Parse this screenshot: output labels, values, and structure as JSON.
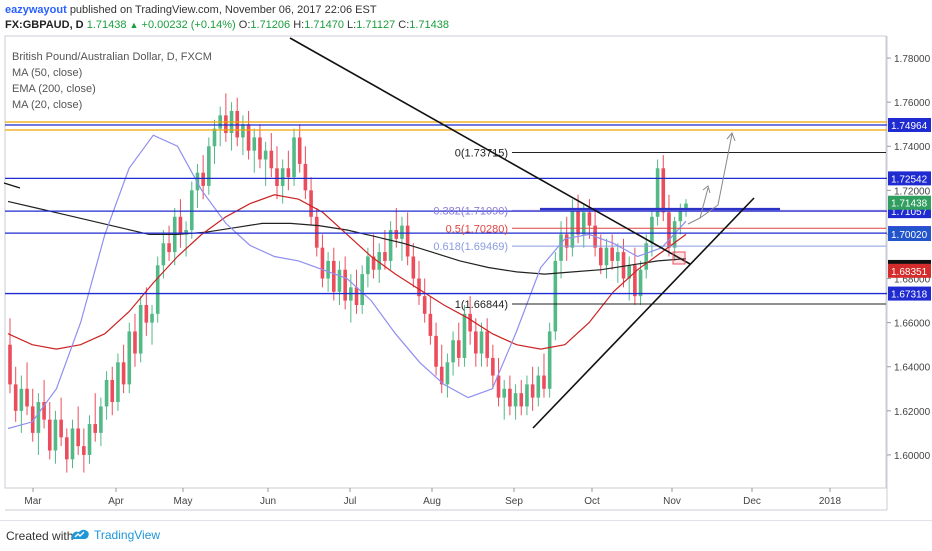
{
  "header": {
    "author": "eazywayout",
    "published_text": "published on TradingView.com, November 06, 2017 22:06 EST",
    "symbol": "FX:GBPAUD, D",
    "last": "1.71438",
    "change": "+0.00232 (+0.14%)",
    "open_label": "O:",
    "open": "1.71206",
    "high_label": "H:",
    "high": "1.71470",
    "low_label": "L:",
    "low": "1.71127",
    "close_label": "C:",
    "close": "1.71438"
  },
  "legend": {
    "title": "British Pound/Australian Dollar, D, FXCM",
    "ma50": "MA (50, close)",
    "ema200": "EMA (200, close)",
    "ma20": "MA (20, close)"
  },
  "footer": {
    "created_with": "Created with",
    "brand": "TradingView"
  },
  "colors": {
    "up": "#53b987",
    "down": "#eb4d5c",
    "blue_line": "#1f2bd1",
    "orange_line": "#f0a400",
    "ma50": "#cc2222",
    "ma20": "#8f8ff0",
    "ema200": "#222222",
    "fib_382": "#8a7bd8",
    "fib_05": "#e04444",
    "fib_618": "#8a9be0"
  },
  "chart_data": {
    "type": "candlestick",
    "x_ticks": [
      "Mar",
      "Apr",
      "May",
      "Jun",
      "Jul",
      "Aug",
      "Sep",
      "Oct",
      "Nov",
      "Dec",
      "2018"
    ],
    "y_ticks": [
      "1.78000",
      "1.76000",
      "1.74000",
      "1.72000",
      "1.70000",
      "1.68000",
      "1.66000",
      "1.64000",
      "1.62000",
      "1.60000"
    ],
    "ylim": [
      1.585,
      1.79
    ],
    "candles": [
      [
        1.65,
        1.662,
        1.628,
        1.632
      ],
      [
        1.632,
        1.64,
        1.615,
        1.62
      ],
      [
        1.62,
        1.636,
        1.61,
        1.63
      ],
      [
        1.63,
        1.642,
        1.618,
        1.622
      ],
      [
        1.622,
        1.63,
        1.606,
        1.61
      ],
      [
        1.61,
        1.628,
        1.6,
        1.624
      ],
      [
        1.624,
        1.634,
        1.612,
        1.616
      ],
      [
        1.616,
        1.624,
        1.598,
        1.602
      ],
      [
        1.602,
        1.62,
        1.596,
        1.616
      ],
      [
        1.616,
        1.626,
        1.604,
        1.608
      ],
      [
        1.608,
        1.612,
        1.592,
        1.598
      ],
      [
        1.598,
        1.616,
        1.594,
        1.612
      ],
      [
        1.612,
        1.622,
        1.6,
        1.604
      ],
      [
        1.604,
        1.612,
        1.592,
        1.6
      ],
      [
        1.6,
        1.618,
        1.596,
        1.614
      ],
      [
        1.614,
        1.628,
        1.606,
        1.61
      ],
      [
        1.61,
        1.626,
        1.604,
        1.622
      ],
      [
        1.622,
        1.638,
        1.616,
        1.634
      ],
      [
        1.634,
        1.64,
        1.618,
        1.624
      ],
      [
        1.624,
        1.646,
        1.62,
        1.642
      ],
      [
        1.642,
        1.65,
        1.628,
        1.632
      ],
      [
        1.632,
        1.66,
        1.628,
        1.656
      ],
      [
        1.656,
        1.664,
        1.64,
        1.646
      ],
      [
        1.646,
        1.672,
        1.642,
        1.668
      ],
      [
        1.668,
        1.676,
        1.654,
        1.66
      ],
      [
        1.66,
        1.668,
        1.65,
        1.664
      ],
      [
        1.664,
        1.69,
        1.66,
        1.686
      ],
      [
        1.686,
        1.702,
        1.68,
        1.696
      ],
      [
        1.696,
        1.704,
        1.688,
        1.692
      ],
      [
        1.692,
        1.712,
        1.686,
        1.708
      ],
      [
        1.708,
        1.716,
        1.694,
        1.7
      ],
      [
        1.7,
        1.706,
        1.69,
        1.702
      ],
      [
        1.702,
        1.724,
        1.698,
        1.72
      ],
      [
        1.72,
        1.732,
        1.712,
        1.728
      ],
      [
        1.728,
        1.736,
        1.716,
        1.722
      ],
      [
        1.722,
        1.744,
        1.718,
        1.74
      ],
      [
        1.74,
        1.752,
        1.732,
        1.748
      ],
      [
        1.748,
        1.758,
        1.74,
        1.754
      ],
      [
        1.754,
        1.764,
        1.742,
        1.746
      ],
      [
        1.746,
        1.76,
        1.738,
        1.756
      ],
      [
        1.756,
        1.762,
        1.74,
        1.744
      ],
      [
        1.744,
        1.754,
        1.736,
        1.75
      ],
      [
        1.75,
        1.756,
        1.734,
        1.738
      ],
      [
        1.738,
        1.748,
        1.728,
        1.744
      ],
      [
        1.744,
        1.75,
        1.73,
        1.734
      ],
      [
        1.734,
        1.742,
        1.722,
        1.738
      ],
      [
        1.738,
        1.746,
        1.726,
        1.73
      ],
      [
        1.73,
        1.74,
        1.716,
        1.722
      ],
      [
        1.722,
        1.734,
        1.714,
        1.73
      ],
      [
        1.73,
        1.738,
        1.72,
        1.726
      ],
      [
        1.726,
        1.748,
        1.722,
        1.744
      ],
      [
        1.744,
        1.75,
        1.728,
        1.732
      ],
      [
        1.732,
        1.74,
        1.716,
        1.72
      ],
      [
        1.72,
        1.726,
        1.704,
        1.708
      ],
      [
        1.708,
        1.712,
        1.69,
        1.694
      ],
      [
        1.694,
        1.7,
        1.676,
        1.68
      ],
      [
        1.68,
        1.692,
        1.674,
        1.688
      ],
      [
        1.688,
        1.694,
        1.67,
        1.674
      ],
      [
        1.674,
        1.688,
        1.668,
        1.684
      ],
      [
        1.684,
        1.69,
        1.666,
        1.67
      ],
      [
        1.67,
        1.682,
        1.66,
        1.676
      ],
      [
        1.676,
        1.684,
        1.664,
        1.668
      ],
      [
        1.668,
        1.686,
        1.664,
        1.682
      ],
      [
        1.682,
        1.694,
        1.676,
        1.69
      ],
      [
        1.69,
        1.7,
        1.68,
        1.684
      ],
      [
        1.684,
        1.696,
        1.678,
        1.692
      ],
      [
        1.692,
        1.702,
        1.684,
        1.688
      ],
      [
        1.688,
        1.706,
        1.684,
        1.702
      ],
      [
        1.702,
        1.712,
        1.694,
        1.698
      ],
      [
        1.698,
        1.708,
        1.688,
        1.704
      ],
      [
        1.704,
        1.71,
        1.686,
        1.69
      ],
      [
        1.69,
        1.696,
        1.676,
        1.68
      ],
      [
        1.68,
        1.688,
        1.668,
        1.672
      ],
      [
        1.672,
        1.68,
        1.66,
        1.664
      ],
      [
        1.664,
        1.672,
        1.65,
        1.654
      ],
      [
        1.654,
        1.66,
        1.636,
        1.64
      ],
      [
        1.64,
        1.65,
        1.628,
        1.632
      ],
      [
        1.632,
        1.646,
        1.626,
        1.642
      ],
      [
        1.642,
        1.656,
        1.636,
        1.652
      ],
      [
        1.652,
        1.66,
        1.64,
        1.644
      ],
      [
        1.644,
        1.668,
        1.64,
        1.664
      ],
      [
        1.664,
        1.672,
        1.65,
        1.656
      ],
      [
        1.656,
        1.662,
        1.64,
        1.646
      ],
      [
        1.646,
        1.66,
        1.64,
        1.656
      ],
      [
        1.656,
        1.662,
        1.64,
        1.644
      ],
      [
        1.644,
        1.65,
        1.63,
        1.636
      ],
      [
        1.636,
        1.644,
        1.622,
        1.626
      ],
      [
        1.626,
        1.634,
        1.616,
        1.63
      ],
      [
        1.63,
        1.636,
        1.618,
        1.622
      ],
      [
        1.622,
        1.632,
        1.616,
        1.628
      ],
      [
        1.628,
        1.634,
        1.618,
        1.622
      ],
      [
        1.622,
        1.636,
        1.618,
        1.632
      ],
      [
        1.632,
        1.64,
        1.62,
        1.626
      ],
      [
        1.626,
        1.64,
        1.622,
        1.636
      ],
      [
        1.636,
        1.646,
        1.626,
        1.63
      ],
      [
        1.63,
        1.66,
        1.626,
        1.656
      ],
      [
        1.656,
        1.692,
        1.652,
        1.688
      ],
      [
        1.688,
        1.706,
        1.68,
        1.7
      ],
      [
        1.7,
        1.708,
        1.688,
        1.694
      ],
      [
        1.694,
        1.716,
        1.69,
        1.712
      ],
      [
        1.712,
        1.718,
        1.696,
        1.7
      ],
      [
        1.7,
        1.714,
        1.694,
        1.71
      ],
      [
        1.71,
        1.716,
        1.698,
        1.704
      ],
      [
        1.704,
        1.712,
        1.69,
        1.694
      ],
      [
        1.694,
        1.7,
        1.682,
        1.686
      ],
      [
        1.686,
        1.698,
        1.68,
        1.694
      ],
      [
        1.694,
        1.7,
        1.684,
        1.688
      ],
      [
        1.688,
        1.696,
        1.678,
        1.692
      ],
      [
        1.692,
        1.698,
        1.676,
        1.68
      ],
      [
        1.68,
        1.69,
        1.67,
        1.686
      ],
      [
        1.686,
        1.694,
        1.668,
        1.672
      ],
      [
        1.672,
        1.688,
        1.668,
        1.684
      ],
      [
        1.684,
        1.7,
        1.68,
        1.696
      ],
      [
        1.696,
        1.712,
        1.69,
        1.708
      ],
      [
        1.708,
        1.734,
        1.704,
        1.73
      ],
      [
        1.73,
        1.736,
        1.706,
        1.71
      ],
      [
        1.71,
        1.718,
        1.69,
        1.694
      ],
      [
        1.694,
        1.708,
        1.688,
        1.706
      ],
      [
        1.706,
        1.714,
        1.7,
        1.712
      ],
      [
        1.712,
        1.716,
        1.708,
        1.714
      ]
    ],
    "ma50": [
      1.655,
      1.65,
      1.648,
      1.65,
      1.655,
      1.665,
      1.678,
      1.69,
      1.7,
      1.708,
      1.714,
      1.718,
      1.716,
      1.71,
      1.7,
      1.69,
      1.682,
      1.675,
      1.668,
      1.662,
      1.655,
      1.65,
      1.648,
      1.65,
      1.66,
      1.674,
      1.684,
      1.692,
      1.7
    ],
    "ma20": [
      1.612,
      1.615,
      1.63,
      1.66,
      1.7,
      1.73,
      1.745,
      1.74,
      1.72,
      1.705,
      1.695,
      1.69,
      1.688,
      1.684,
      1.68,
      1.67,
      1.655,
      1.642,
      1.632,
      1.626,
      1.63,
      1.656,
      1.685,
      1.698,
      1.7,
      1.696,
      1.69,
      1.694,
      1.706
    ],
    "ema200": [
      1.715,
      1.712,
      1.709,
      1.706,
      1.703,
      1.7,
      1.7,
      1.701,
      1.703,
      1.705,
      1.705,
      1.704,
      1.702,
      1.699,
      1.696,
      1.692,
      1.688,
      1.685,
      1.683,
      1.682,
      1.683,
      1.684,
      1.686,
      1.688,
      1.689
    ],
    "h_lines": [
      {
        "value": 1.74964,
        "label": "1.74964",
        "color": "orange"
      },
      {
        "value": 1.72542,
        "label": "1.72542",
        "color": "blue"
      },
      {
        "value": 1.71057,
        "label": "1.71057",
        "color": "blue"
      },
      {
        "value": 1.70058,
        "label": "1.70058",
        "color": "blue"
      },
      {
        "value": 1.67318,
        "label": "1.67318",
        "color": "blue"
      }
    ],
    "price_tags": [
      {
        "value": 1.71438,
        "label": "1.71438",
        "style": "green"
      },
      {
        "value": 1.7002,
        "label": "1.70020",
        "style": "blue"
      },
      {
        "value": 1.68526,
        "label": "1.68526",
        "style": "dark"
      },
      {
        "value": 1.68351,
        "label": "1.68351",
        "style": "red"
      }
    ],
    "fib_levels": [
      {
        "level": "0(1.73715)",
        "value": 1.73715,
        "color": "black"
      },
      {
        "level": "0.382(1.71090)",
        "value": 1.7109,
        "color": "purple"
      },
      {
        "level": "0.5(1.70280)",
        "value": 1.7028,
        "color": "red"
      },
      {
        "level": "0.618(1.69469)",
        "value": 1.69469,
        "color": "lightblue"
      },
      {
        "level": "1(1.66844)",
        "value": 1.66844,
        "color": "black"
      }
    ]
  }
}
